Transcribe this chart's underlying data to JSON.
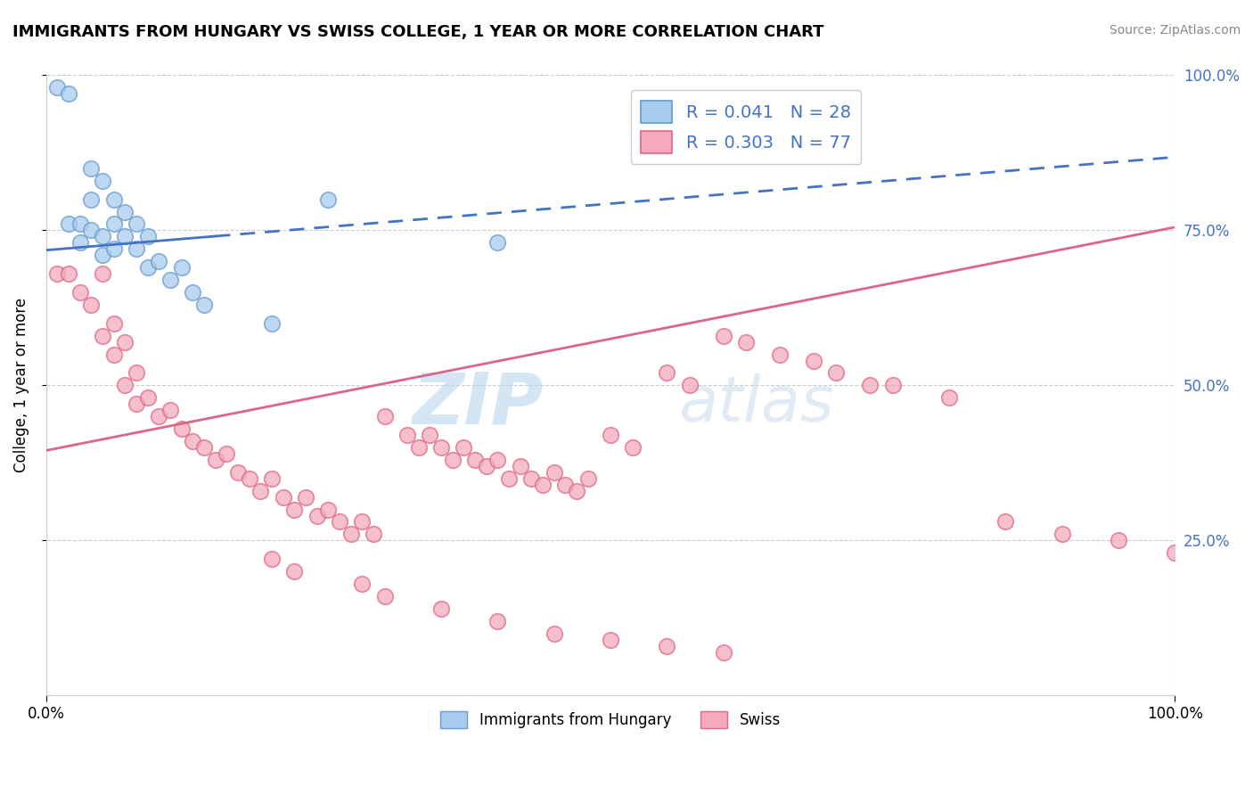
{
  "title": "IMMIGRANTS FROM HUNGARY VS SWISS COLLEGE, 1 YEAR OR MORE CORRELATION CHART",
  "source_text": "Source: ZipAtlas.com",
  "ylabel": "College, 1 year or more",
  "xlim": [
    0.0,
    1.0
  ],
  "ylim": [
    0.0,
    1.0
  ],
  "ytick_positions": [
    0.25,
    0.5,
    0.75,
    1.0
  ],
  "ytick_labels": [
    "25.0%",
    "50.0%",
    "75.0%",
    "100.0%"
  ],
  "legend_labels": [
    "Immigrants from Hungary",
    "Swiss"
  ],
  "legend_r": [
    "R = 0.041",
    "N = 28"
  ],
  "legend_r2": [
    "R = 0.303",
    "N = 77"
  ],
  "blue_fill": "#A8CCEE",
  "blue_edge": "#6699CC",
  "pink_fill": "#F4AABC",
  "pink_edge": "#DD6688",
  "blue_line": "#4472C4",
  "pink_line": "#DD6688",
  "watermark": "ZIPatlas",
  "blue_x": [
    0.01,
    0.02,
    0.02,
    0.03,
    0.03,
    0.04,
    0.04,
    0.04,
    0.05,
    0.05,
    0.05,
    0.06,
    0.06,
    0.06,
    0.07,
    0.07,
    0.08,
    0.08,
    0.09,
    0.09,
    0.1,
    0.11,
    0.12,
    0.13,
    0.14,
    0.2,
    0.25,
    0.4
  ],
  "blue_y": [
    0.98,
    0.97,
    0.76,
    0.76,
    0.73,
    0.85,
    0.8,
    0.75,
    0.83,
    0.74,
    0.71,
    0.8,
    0.76,
    0.72,
    0.78,
    0.74,
    0.76,
    0.72,
    0.74,
    0.69,
    0.7,
    0.67,
    0.69,
    0.65,
    0.63,
    0.6,
    0.8,
    0.73
  ],
  "pink_x": [
    0.01,
    0.02,
    0.03,
    0.04,
    0.05,
    0.05,
    0.06,
    0.06,
    0.07,
    0.07,
    0.08,
    0.08,
    0.09,
    0.1,
    0.11,
    0.12,
    0.13,
    0.14,
    0.15,
    0.16,
    0.17,
    0.18,
    0.19,
    0.2,
    0.21,
    0.22,
    0.23,
    0.24,
    0.25,
    0.26,
    0.27,
    0.28,
    0.29,
    0.3,
    0.32,
    0.33,
    0.34,
    0.35,
    0.36,
    0.37,
    0.38,
    0.39,
    0.4,
    0.41,
    0.42,
    0.43,
    0.44,
    0.45,
    0.46,
    0.47,
    0.48,
    0.5,
    0.52,
    0.55,
    0.57,
    0.6,
    0.62,
    0.65,
    0.68,
    0.7,
    0.73,
    0.75,
    0.8,
    0.85,
    0.9,
    0.95,
    1.0,
    0.2,
    0.22,
    0.28,
    0.3,
    0.35,
    0.4,
    0.45,
    0.5,
    0.55,
    0.6
  ],
  "pink_y": [
    0.68,
    0.68,
    0.65,
    0.63,
    0.68,
    0.58,
    0.6,
    0.55,
    0.57,
    0.5,
    0.52,
    0.47,
    0.48,
    0.45,
    0.46,
    0.43,
    0.41,
    0.4,
    0.38,
    0.39,
    0.36,
    0.35,
    0.33,
    0.35,
    0.32,
    0.3,
    0.32,
    0.29,
    0.3,
    0.28,
    0.26,
    0.28,
    0.26,
    0.45,
    0.42,
    0.4,
    0.42,
    0.4,
    0.38,
    0.4,
    0.38,
    0.37,
    0.38,
    0.35,
    0.37,
    0.35,
    0.34,
    0.36,
    0.34,
    0.33,
    0.35,
    0.42,
    0.4,
    0.52,
    0.5,
    0.58,
    0.57,
    0.55,
    0.54,
    0.52,
    0.5,
    0.5,
    0.48,
    0.28,
    0.26,
    0.25,
    0.23,
    0.22,
    0.2,
    0.18,
    0.16,
    0.14,
    0.12,
    0.1,
    0.09,
    0.08,
    0.07
  ],
  "blue_trend_x": [
    0.0,
    1.0
  ],
  "blue_trend_y": [
    0.718,
    0.868
  ],
  "pink_trend_x": [
    0.0,
    1.0
  ],
  "pink_trend_y": [
    0.395,
    0.755
  ]
}
